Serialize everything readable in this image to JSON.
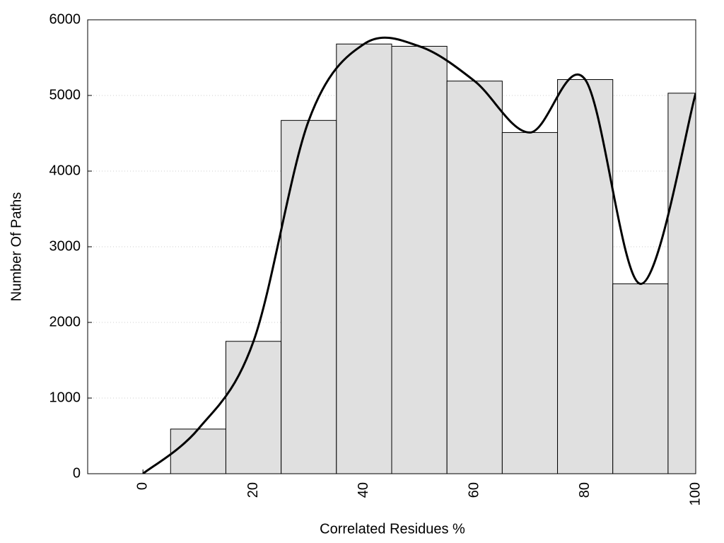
{
  "chart_data": {
    "type": "histogram",
    "xlabel": "Correlated Residues %",
    "ylabel": "Number Of Paths",
    "bins": [
      -5,
      5,
      15,
      25,
      35,
      45,
      55,
      65,
      75,
      85,
      95,
      105
    ],
    "values": [
      0,
      590,
      1750,
      4670,
      5680,
      5650,
      5190,
      4510,
      5210,
      2510,
      5030
    ],
    "color": "#e0e0e0",
    "edge_color": "#000000",
    "line_color": "#000000",
    "smooth_line": true,
    "xlim": [
      -10,
      100
    ],
    "xticks": [
      0,
      20,
      40,
      60,
      80,
      100
    ],
    "ylim": [
      0,
      6000
    ],
    "yticks": [
      0,
      1000,
      2000,
      3000,
      4000,
      5000,
      6000
    ],
    "grid": true
  }
}
